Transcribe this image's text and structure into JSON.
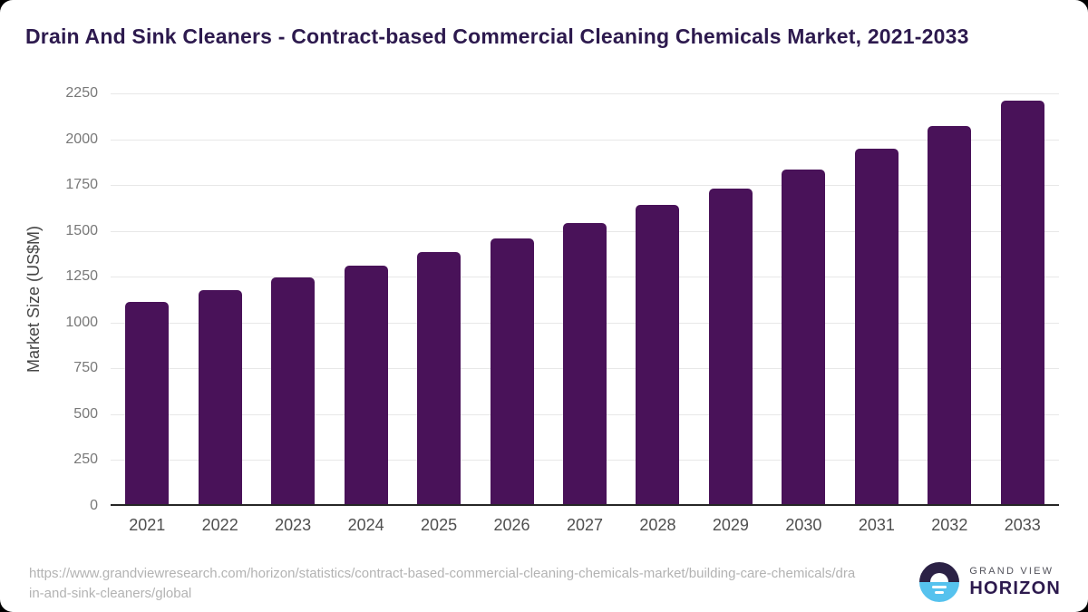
{
  "header": {
    "title": "Drain And Sink Cleaners - Contract-based Commercial Cleaning Chemicals Market, 2021-2033"
  },
  "chart_data": {
    "type": "bar",
    "title": "Drain And Sink Cleaners - Contract-based Commercial Cleaning Chemicals Market, 2021-2033",
    "categories": [
      "2021",
      "2022",
      "2023",
      "2024",
      "2025",
      "2026",
      "2027",
      "2028",
      "2029",
      "2030",
      "2031",
      "2032",
      "2033"
    ],
    "values": [
      1115,
      1175,
      1245,
      1310,
      1385,
      1460,
      1545,
      1640,
      1730,
      1835,
      1950,
      2070,
      2210
    ],
    "xlabel": "",
    "ylabel": "Market Size (US$M)",
    "ylim": [
      0,
      2250
    ],
    "ytick_step": 250,
    "grid": true,
    "legend": false,
    "bar_color": "#491259"
  },
  "footer": {
    "source_url": "https://www.grandviewresearch.com/horizon/statistics/contract-based-commercial-cleaning-chemicals-market/building-care-chemicals/drain-and-sink-cleaners/global",
    "logo": {
      "top_text": "GRAND VIEW",
      "bottom_text": "HORIZON"
    }
  },
  "colors": {
    "title": "#2d1a4e",
    "bar": "#491259",
    "gridline": "#e8e8e8",
    "axis_line": "#262626",
    "y_tick_label": "#787878",
    "x_tick_label": "#4f4f4f",
    "source_text": "#b3b3b3",
    "logo_navy": "#2b2145",
    "logo_blue": "#56c2ee"
  }
}
